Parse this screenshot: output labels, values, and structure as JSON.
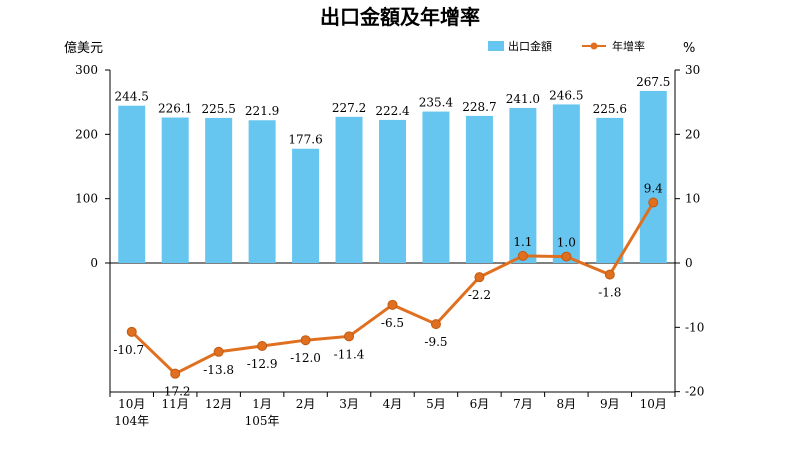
{
  "chart_data": {
    "type": "bar+line",
    "title": "出口金額及年增率",
    "left_axis": {
      "unit": "億美元",
      "ylim": [
        -200,
        300
      ],
      "ticks": [
        0,
        100,
        200,
        300
      ]
    },
    "right_axis": {
      "unit": "%",
      "ylim": [
        -20,
        30
      ],
      "ticks": [
        -20,
        -10,
        0,
        10,
        20,
        30
      ]
    },
    "categories": [
      "10月",
      "11月",
      "12月",
      "1月",
      "2月",
      "3月",
      "4月",
      "5月",
      "6月",
      "7月",
      "8月",
      "9月",
      "10月"
    ],
    "year_labels": [
      "104年",
      "",
      "",
      "105年",
      "",
      "",
      "",
      "",
      "",
      "",
      "",
      "",
      ""
    ],
    "series": [
      {
        "name": "出口金額",
        "type": "bar",
        "axis": "left",
        "color": "#66C6F0",
        "values": [
          244.5,
          226.1,
          225.5,
          221.9,
          177.6,
          227.2,
          222.4,
          235.4,
          228.7,
          241.0,
          246.5,
          225.6,
          267.5
        ],
        "labels": [
          "244.5",
          "226.1",
          "225.5",
          "221.9",
          "177.6",
          "227.2",
          "222.4",
          "235.4",
          "228.7",
          "241.0",
          "246.5",
          "225.6",
          "267.5"
        ]
      },
      {
        "name": "年增率",
        "type": "line",
        "axis": "right",
        "color": "#E07020",
        "values": [
          -10.7,
          -17.2,
          -13.8,
          -12.9,
          -12.0,
          -11.4,
          -6.5,
          -9.5,
          -2.2,
          1.1,
          1.0,
          -1.8,
          9.4
        ],
        "labels": [
          "-10.7",
          "-17.2",
          "-13.8",
          "-12.9",
          "-12.0",
          "-11.4",
          "-6.5",
          "-9.5",
          "-2.2",
          "1.1",
          "1.0",
          "-1.8",
          "9.4"
        ]
      }
    ],
    "legend": {
      "position": "top-right"
    }
  }
}
